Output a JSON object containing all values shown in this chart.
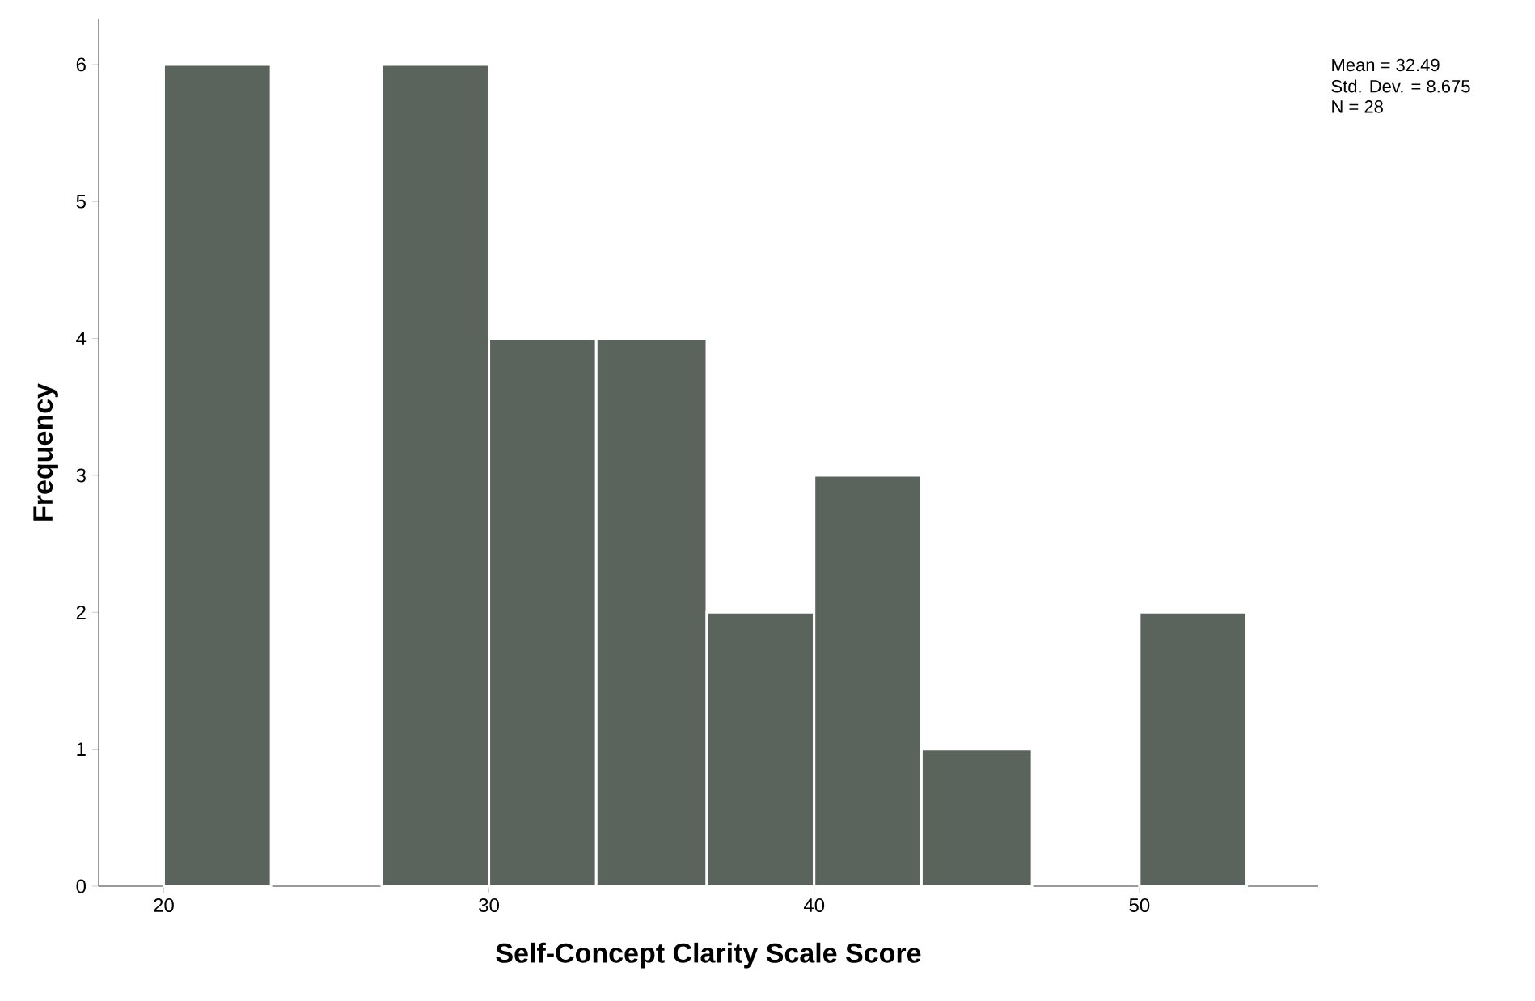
{
  "chart_data": {
    "type": "histogram",
    "xlabel": "Self-Concept Clarity Scale Score",
    "ylabel": "Frequency",
    "bins": [
      20,
      23.3,
      26.7,
      30,
      33.3,
      36.7,
      40,
      43.3,
      46.7,
      50,
      53.3
    ],
    "values": [
      6,
      0,
      6,
      4,
      4,
      2,
      3,
      1,
      0,
      2
    ],
    "color": "#5a635c",
    "xlim": [
      18,
      55.5
    ],
    "xticks": [
      20,
      30,
      40,
      50
    ],
    "ylim": [
      0,
      6.33
    ],
    "yticks": [
      0,
      1,
      2,
      3,
      4,
      5,
      6
    ],
    "grid": false,
    "annotations": [
      "Mean = 32.49",
      "Std. Dev. = 8.675",
      "N = 28"
    ]
  }
}
